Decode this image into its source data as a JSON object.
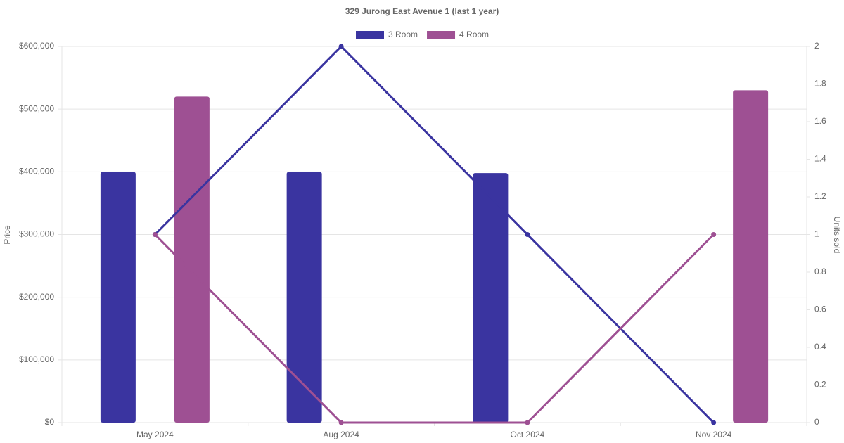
{
  "chart_data": {
    "type": "bar_line",
    "title": "329 Jurong East Avenue 1 (last 1 year)",
    "categories": [
      "May 2024",
      "Aug 2024",
      "Oct 2024",
      "Nov 2024"
    ],
    "series": [
      {
        "name": "3 Room",
        "color": "#3a34a0",
        "type": "bar",
        "values": [
          400000,
          400000,
          398000,
          null
        ]
      },
      {
        "name": "4 Room",
        "color": "#9e5093",
        "type": "bar",
        "values": [
          520000,
          null,
          null,
          530000
        ]
      },
      {
        "name": "3 Room",
        "color": "#3a34a0",
        "type": "line",
        "axis": "y2",
        "values": [
          1,
          2,
          1,
          0
        ]
      },
      {
        "name": "4 Room",
        "color": "#9e5093",
        "type": "line",
        "axis": "y2",
        "values": [
          1,
          0,
          0,
          1
        ]
      }
    ],
    "ylabel": "Price",
    "y2label": "Units sold",
    "ylim": [
      0,
      600000
    ],
    "yticks": [
      {
        "value": 0,
        "label": "$0"
      },
      {
        "value": 100000,
        "label": "$100,000"
      },
      {
        "value": 200000,
        "label": "$200,000"
      },
      {
        "value": 300000,
        "label": "$300,000"
      },
      {
        "value": 400000,
        "label": "$400,000"
      },
      {
        "value": 500000,
        "label": "$500,000"
      },
      {
        "value": 600000,
        "label": "$600,000"
      }
    ],
    "y2lim": [
      0,
      2
    ],
    "y2ticks": [
      0,
      0.2,
      0.4,
      0.6,
      0.8,
      1,
      1.2,
      1.4,
      1.6,
      1.8,
      2
    ],
    "grid": true,
    "legend": "top"
  }
}
